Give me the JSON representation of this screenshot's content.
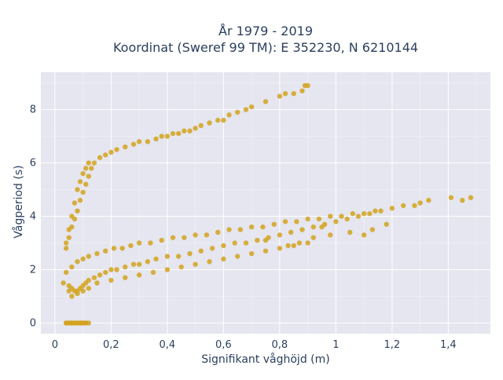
{
  "chart_data": {
    "type": "scatter",
    "title_line1": "År 1979 - 2019",
    "title_line2": "Koordinat (Sweref 99 TM): E 352230, N 6210144",
    "xlabel": "Signifikant våghöjd (m)",
    "ylabel": "Vågperiod (s)",
    "xlim": [
      -0.05,
      1.55
    ],
    "ylim": [
      -0.4,
      9.4
    ],
    "xticks": [
      {
        "v": 0,
        "label": "0"
      },
      {
        "v": 0.2,
        "label": "0,2"
      },
      {
        "v": 0.4,
        "label": "0,4"
      },
      {
        "v": 0.6,
        "label": "0,6"
      },
      {
        "v": 0.8,
        "label": "0,8"
      },
      {
        "v": 1.0,
        "label": "1"
      },
      {
        "v": 1.2,
        "label": "1,2"
      },
      {
        "v": 1.4,
        "label": "1,4"
      }
    ],
    "yticks": [
      {
        "v": 0,
        "label": "0"
      },
      {
        "v": 2,
        "label": "2"
      },
      {
        "v": 4,
        "label": "4"
      },
      {
        "v": 6,
        "label": "6"
      },
      {
        "v": 8,
        "label": "8"
      }
    ],
    "grid": true,
    "marker_color": "#d4a21f",
    "background_color": "#e5e6ef",
    "series": [
      {
        "x": [
          0.03,
          0.05,
          0.05,
          0.06,
          0.07,
          0.08,
          0.09,
          0.1,
          0.11,
          0.12,
          0.14,
          0.16,
          0.18,
          0.2,
          0.22,
          0.25,
          0.28,
          0.3,
          0.33,
          0.36,
          0.4,
          0.44,
          0.48,
          0.52,
          0.56,
          0.6,
          0.64,
          0.68,
          0.72,
          0.76,
          0.8,
          0.84,
          0.88,
          0.92,
          0.96,
          1.0,
          1.04,
          1.08,
          1.12,
          1.16,
          1.2,
          1.24,
          1.28,
          1.3,
          1.33,
          1.41,
          1.45,
          1.48,
          0.04,
          0.06,
          0.08,
          0.1,
          0.12,
          0.15,
          0.18,
          0.21,
          0.24,
          0.27,
          0.3,
          0.34,
          0.38,
          0.42,
          0.46,
          0.5,
          0.54,
          0.58,
          0.62,
          0.66,
          0.7,
          0.74,
          0.78,
          0.82,
          0.86,
          0.9,
          0.94,
          0.98,
          1.02,
          1.06,
          1.1,
          1.14,
          0.06,
          0.08,
          0.1,
          0.12,
          0.15,
          0.2,
          0.25,
          0.3,
          0.35,
          0.4,
          0.45,
          0.5,
          0.55,
          0.6,
          0.65,
          0.7,
          0.75,
          0.8,
          0.85,
          0.9,
          0.04,
          0.05,
          0.06,
          0.07,
          0.08,
          0.09,
          0.1,
          0.11,
          0.12,
          0.04,
          0.05,
          0.06,
          0.07,
          0.08,
          0.09,
          0.1,
          0.11,
          0.12,
          0.13,
          0.14,
          0.16,
          0.18,
          0.2,
          0.22,
          0.25,
          0.28,
          0.3,
          0.33,
          0.36,
          0.38,
          0.4,
          0.42,
          0.44,
          0.46,
          0.48,
          0.5,
          0.52,
          0.55,
          0.58,
          0.6,
          0.62,
          0.65,
          0.68,
          0.7,
          0.75,
          0.8,
          0.82,
          0.85,
          0.88,
          0.9,
          0.89,
          0.04,
          0.05,
          0.06,
          0.07,
          0.08,
          0.09,
          0.1,
          0.11,
          0.04,
          0.05,
          0.06,
          0.07,
          0.08,
          0.09,
          0.1,
          0.11,
          0.12,
          1.05,
          1.1,
          1.13,
          1.18,
          0.95,
          0.92,
          0.98,
          0.87,
          0.83,
          0.75
        ],
        "y": [
          1.5,
          1.2,
          1.4,
          1.3,
          1.2,
          1.2,
          1.3,
          1.4,
          1.5,
          1.6,
          1.7,
          1.8,
          1.9,
          2.0,
          2.0,
          2.1,
          2.2,
          2.2,
          2.3,
          2.4,
          2.5,
          2.5,
          2.6,
          2.7,
          2.8,
          2.9,
          3.0,
          3.0,
          3.1,
          3.2,
          3.3,
          3.4,
          3.5,
          3.6,
          3.7,
          3.8,
          3.9,
          4.0,
          4.1,
          4.2,
          4.3,
          4.4,
          4.4,
          4.5,
          4.6,
          4.7,
          4.6,
          4.7,
          1.9,
          2.1,
          2.3,
          2.4,
          2.5,
          2.6,
          2.7,
          2.8,
          2.8,
          2.9,
          3.0,
          3.0,
          3.1,
          3.2,
          3.2,
          3.3,
          3.3,
          3.4,
          3.5,
          3.5,
          3.6,
          3.6,
          3.7,
          3.8,
          3.8,
          3.9,
          3.9,
          4.0,
          4.0,
          4.1,
          4.1,
          4.2,
          1.0,
          1.1,
          1.2,
          1.3,
          1.5,
          1.6,
          1.7,
          1.8,
          1.9,
          2.0,
          2.1,
          2.2,
          2.3,
          2.4,
          2.5,
          2.6,
          2.7,
          2.8,
          2.9,
          3.0,
          3.0,
          3.5,
          4.0,
          4.5,
          5.0,
          5.3,
          5.6,
          5.8,
          6.0,
          2.8,
          3.2,
          3.6,
          3.9,
          4.2,
          4.6,
          4.9,
          5.2,
          5.5,
          5.8,
          6.0,
          6.2,
          6.3,
          6.4,
          6.5,
          6.6,
          6.7,
          6.8,
          6.8,
          6.9,
          7.0,
          7.0,
          7.1,
          7.1,
          7.2,
          7.2,
          7.3,
          7.4,
          7.5,
          7.6,
          7.6,
          7.8,
          7.9,
          8.0,
          8.1,
          8.3,
          8.5,
          8.6,
          8.6,
          8.7,
          8.9,
          8.9,
          0,
          0,
          0,
          0,
          0,
          0,
          0,
          0,
          0,
          0,
          0,
          0,
          0,
          0,
          0,
          0,
          0,
          3.4,
          3.3,
          3.5,
          3.7,
          3.6,
          3.2,
          3.3,
          3.0,
          2.9,
          3.1
        ]
      }
    ]
  }
}
